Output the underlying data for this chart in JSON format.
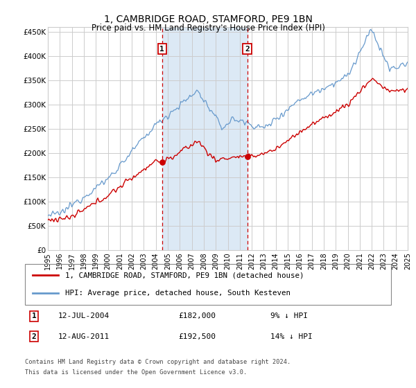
{
  "title": "1, CAMBRIDGE ROAD, STAMFORD, PE9 1BN",
  "subtitle": "Price paid vs. HM Land Registry's House Price Index (HPI)",
  "red_label": "1, CAMBRIDGE ROAD, STAMFORD, PE9 1BN (detached house)",
  "blue_label": "HPI: Average price, detached house, South Kesteven",
  "annotation1": {
    "num": "1",
    "date": "12-JUL-2004",
    "price": "£182,000",
    "hpi": "9% ↓ HPI",
    "x_year": 2004.53
  },
  "annotation2": {
    "num": "2",
    "date": "12-AUG-2011",
    "price": "£192,500",
    "hpi": "14% ↓ HPI",
    "x_year": 2011.62
  },
  "footer1": "Contains HM Land Registry data © Crown copyright and database right 2024.",
  "footer2": "This data is licensed under the Open Government Licence v3.0.",
  "ylim": [
    0,
    460000
  ],
  "xlim_start": 1995,
  "xlim_end": 2025,
  "yticks": [
    0,
    50000,
    100000,
    150000,
    200000,
    250000,
    300000,
    350000,
    400000,
    450000
  ],
  "ytick_labels": [
    "£0",
    "£50K",
    "£100K",
    "£150K",
    "£200K",
    "£250K",
    "£300K",
    "£350K",
    "£400K",
    "£450K"
  ],
  "xticks": [
    1995,
    1996,
    1997,
    1998,
    1999,
    2000,
    2001,
    2002,
    2003,
    2004,
    2005,
    2006,
    2007,
    2008,
    2009,
    2010,
    2011,
    2012,
    2013,
    2014,
    2015,
    2016,
    2017,
    2018,
    2019,
    2020,
    2021,
    2022,
    2023,
    2024,
    2025
  ],
  "shade_color": "#dce9f5",
  "grid_color": "#cccccc",
  "red_color": "#cc0000",
  "blue_color": "#6699cc",
  "ann1_price_y": 182000,
  "ann2_price_y": 192500
}
